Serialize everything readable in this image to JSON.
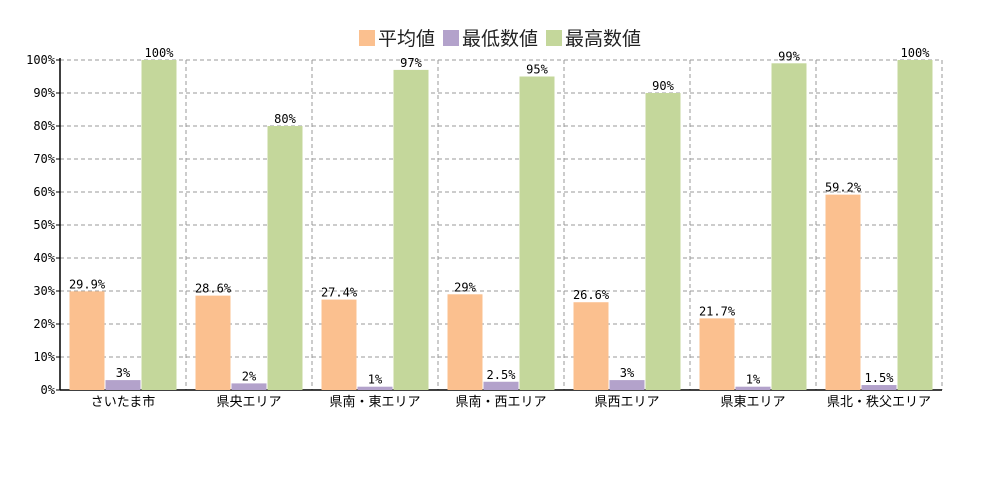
{
  "chart_data": {
    "type": "bar",
    "title": "",
    "xlabel": "",
    "ylabel": "",
    "ylim": [
      0,
      100
    ],
    "yticks": [
      "0%",
      "10%",
      "20%",
      "30%",
      "40%",
      "50%",
      "60%",
      "70%",
      "80%",
      "90%",
      "100%"
    ],
    "value_suffix": "%",
    "grid": true,
    "legend_position": "top",
    "categories": [
      "さいたま市",
      "県央エリア",
      "県南・東エリア",
      "県南・西エリア",
      "県西エリア",
      "県東エリア",
      "県北・秩父エリア"
    ],
    "series": [
      {
        "name": "平均値",
        "color": "#fbc08f",
        "values": [
          29.9,
          28.6,
          27.4,
          29,
          26.6,
          21.7,
          59.2
        ]
      },
      {
        "name": "最低数値",
        "color": "#b3a2cb",
        "values": [
          3,
          2,
          1,
          2.5,
          3,
          1,
          1.5
        ]
      },
      {
        "name": "最高数値",
        "color": "#c4d79b",
        "values": [
          100,
          80,
          97,
          95,
          90,
          99,
          100
        ]
      }
    ]
  }
}
